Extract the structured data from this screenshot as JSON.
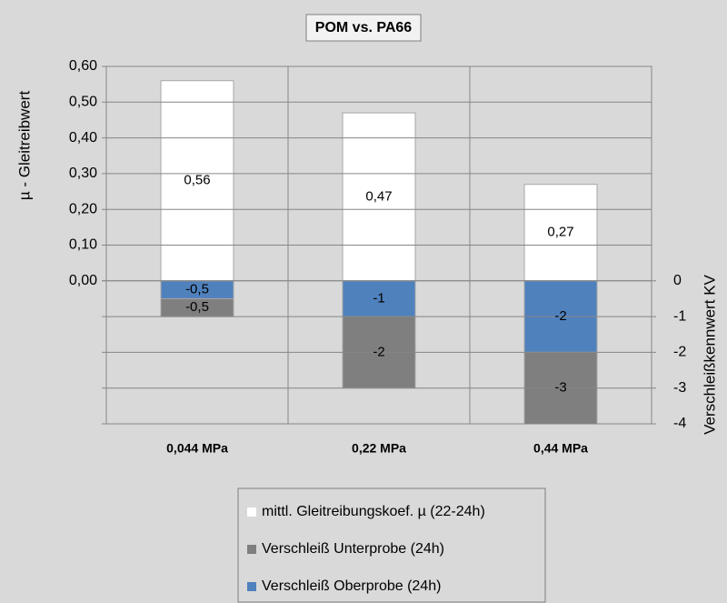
{
  "chart_data": {
    "type": "bar",
    "title": "POM vs. PA66",
    "categories": [
      "0,044 MPa",
      "0,22 MPa",
      "0,44 MPa"
    ],
    "y_label": "µ - Gleitreibwert",
    "y2_label": "Verschleißkennwert KV",
    "ylim": [
      -0.4,
      0.6
    ],
    "yticks": [
      {
        "value": 0,
        "label": "0,00"
      },
      {
        "value": 0.1,
        "label": "0,10"
      },
      {
        "value": 0.2,
        "label": "0,20"
      },
      {
        "value": 0.3,
        "label": "0,30"
      },
      {
        "value": 0.4,
        "label": "0,40"
      },
      {
        "value": 0.5,
        "label": "0,50"
      },
      {
        "value": 0.6,
        "label": "0,60"
      }
    ],
    "y2lim": [
      -4,
      6
    ],
    "y2ticks": [
      0,
      -1,
      -2,
      -3,
      -4
    ],
    "grid": true,
    "series": [
      {
        "name": "mittl. Gleitreibungskoef. µ (22-24h)",
        "color": "#ffffff",
        "values": [
          0.56,
          0.47,
          0.27
        ],
        "value_labels": [
          "0,56",
          "0,47",
          "0,27"
        ]
      },
      {
        "name": "Verschleiß Unterprobe (24h)",
        "color": "#7f7f7f",
        "axis": "y2",
        "values": [
          -0.5,
          -2,
          -3
        ],
        "value_labels": [
          "-0,5",
          "-2",
          "-3"
        ]
      },
      {
        "name": "Verschleiß Oberprobe (24h)",
        "color": "#4f81bd",
        "axis": "y2",
        "values": [
          -0.5,
          -1,
          -2
        ],
        "value_labels": [
          "-0,5",
          "-1",
          "-2"
        ]
      }
    ]
  }
}
